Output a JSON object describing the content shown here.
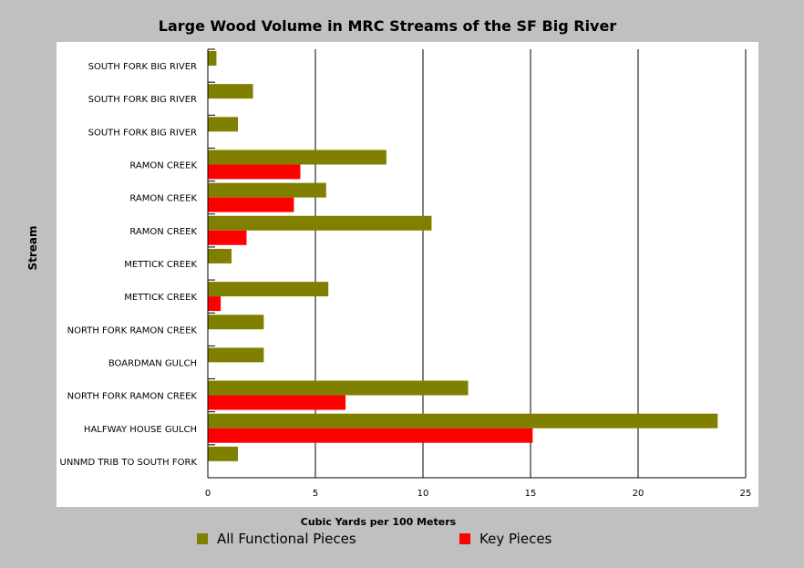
{
  "chart_data": {
    "type": "bar",
    "orientation": "horizontal",
    "title": "Large Wood Volume in MRC Streams of the SF Big River",
    "xlabel": "Cubic Yards per 100 Meters",
    "ylabel": "Stream",
    "xlim": [
      0,
      25
    ],
    "xticks": [
      0,
      5,
      10,
      15,
      20,
      25
    ],
    "grid": "vertical",
    "legend_position": "bottom",
    "categories": [
      "SOUTH FORK BIG RIVER",
      "SOUTH FORK BIG RIVER",
      "SOUTH FORK BIG RIVER",
      "RAMON CREEK",
      "RAMON CREEK",
      "RAMON CREEK",
      "METTICK CREEK",
      "METTICK CREEK",
      "NORTH FORK RAMON CREEK",
      "BOARDMAN GULCH",
      "NORTH FORK RAMON CREEK",
      "HALFWAY HOUSE GULCH",
      "UNNMD TRIB TO SOUTH FORK"
    ],
    "series": [
      {
        "name": "All Functional Pieces",
        "color": "#808000",
        "values": [
          0.4,
          2.1,
          1.4,
          8.3,
          5.5,
          10.4,
          1.1,
          5.6,
          2.6,
          2.6,
          12.1,
          23.7,
          1.4
        ]
      },
      {
        "name": "Key Pieces",
        "color": "#ff0000",
        "values": [
          0,
          0,
          0,
          4.3,
          4.0,
          1.8,
          0,
          0.6,
          0,
          0,
          6.4,
          15.1,
          0
        ]
      }
    ]
  }
}
